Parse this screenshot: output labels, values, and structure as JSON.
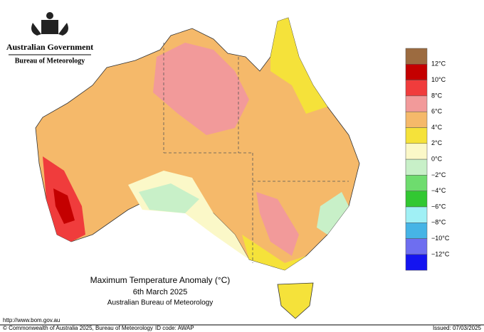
{
  "header": {
    "government": "Australian Government",
    "agency": "Bureau of Meteorology"
  },
  "legend": {
    "colors": [
      "#9c6b40",
      "#c40000",
      "#f03c3c",
      "#f29a9a",
      "#f5b96a",
      "#f5e23a",
      "#fbf8c8",
      "#c8f0c8",
      "#6edc6e",
      "#32c832",
      "#a0f0f5",
      "#46b4e6",
      "#6e6ef0",
      "#1414f0"
    ],
    "labels": [
      "12°C",
      "10°C",
      "8°C",
      "6°C",
      "4°C",
      "2°C",
      "0°C",
      "−2°C",
      "−4°C",
      "−6°C",
      "−8°C",
      "−10°C",
      "−12°C"
    ]
  },
  "title": {
    "line1": "Maximum Temperature Anomaly (°C)",
    "line2": "6th March 2025",
    "line3": "Australian Bureau of Meteorology"
  },
  "footer": {
    "url": "http://www.bom.gov.au",
    "copyright": "© Commonwealth of Australia 2025, Bureau of Meteorology",
    "id_code": "ID code: AWAP",
    "issued": "Issued: 07/03/2025"
  }
}
